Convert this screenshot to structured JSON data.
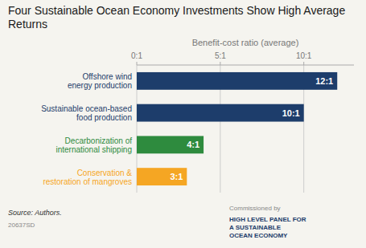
{
  "chart_data": {
    "type": "bar",
    "orientation": "horizontal",
    "title": "Four Sustainable Ocean Economy Investments Show High Average Returns",
    "x_label": "Benefit-cost ratio (average)",
    "categories": [
      "Conservation &\nrestoration of mangroves",
      "Decarbonization of\ninternational shipping",
      "Sustainable ocean-based\nfood production",
      "Offshore wind\nenergy production"
    ],
    "values": [
      3,
      4,
      10,
      12
    ],
    "value_labels": [
      "3:1",
      "4:1",
      "10:1",
      "12:1"
    ],
    "data_labels": true,
    "colors": [
      "#f5a623",
      "#2e8b3e",
      "#1d3d6b",
      "#1d3d6b"
    ],
    "xlim": [
      0,
      13
    ],
    "xticks": [
      {
        "value": 0,
        "label": "0:1"
      },
      {
        "value": 5,
        "label": "5:1"
      },
      {
        "value": 10,
        "label": "10:1"
      }
    ],
    "grid": true,
    "annotations": [
      "Source: Authors.",
      "20637SD",
      "Commissioned by",
      "HIGH LEVEL PANEL FOR\nA SUSTAINABLE\nOCEAN ECONOMY"
    ]
  }
}
